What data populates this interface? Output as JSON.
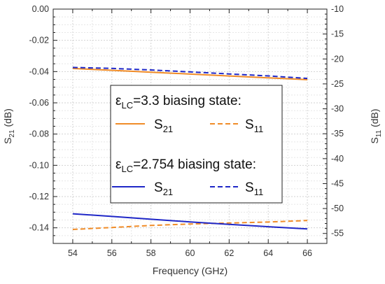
{
  "chart_data": {
    "type": "line",
    "xlabel": "Frequency (GHz)",
    "xlim": [
      53,
      67
    ],
    "x_ticks": [
      54,
      56,
      58,
      60,
      62,
      64,
      66
    ],
    "y_left": {
      "label_main": "S",
      "label_sub": "21",
      "label_unit": " (dB)",
      "lim": [
        -0.15,
        0.0
      ],
      "ticks": [
        "0.00",
        "-0.02",
        "-0.04",
        "-0.06",
        "-0.08",
        "-0.10",
        "-0.12",
        "-0.14"
      ]
    },
    "y_right": {
      "label_main": "S",
      "label_sub": "11",
      "label_unit": " (dB)",
      "lim": [
        -57,
        -10
      ],
      "ticks": [
        "-10",
        "-15",
        "-20",
        "-25",
        "-30",
        "-35",
        "-40",
        "-45",
        "-50",
        "-55"
      ]
    },
    "grid": true,
    "series": [
      {
        "state": "3.3",
        "param": "S21",
        "axis": "left",
        "color": "#f08c28",
        "dash": "solid",
        "x": [
          54,
          56,
          58,
          60,
          62,
          64,
          66
        ],
        "y": [
          -0.038,
          -0.0392,
          -0.0404,
          -0.0416,
          -0.0428,
          -0.044,
          -0.0452
        ]
      },
      {
        "state": "3.3",
        "param": "S11",
        "axis": "right",
        "color": "#f08c28",
        "dash": "dashed",
        "x": [
          54,
          56,
          58,
          60,
          62,
          64,
          66
        ],
        "y": [
          -54.2,
          -53.8,
          -53.4,
          -53.1,
          -52.9,
          -52.7,
          -52.4
        ]
      },
      {
        "state": "2.754",
        "param": "S21",
        "axis": "left",
        "color": "#1f27c7",
        "dash": "solid",
        "x": [
          54,
          56,
          58,
          60,
          62,
          64,
          66
        ],
        "y": [
          -0.131,
          -0.1327,
          -0.1345,
          -0.1362,
          -0.1378,
          -0.1393,
          -0.1407
        ]
      },
      {
        "state": "2.754",
        "param": "S11",
        "axis": "right",
        "color": "#1f27c7",
        "dash": "dashed",
        "x": [
          54,
          56,
          58,
          60,
          62,
          64,
          66
        ],
        "y": [
          -21.7,
          -21.9,
          -22.2,
          -22.6,
          -23.0,
          -23.4,
          -23.9
        ]
      }
    ],
    "legend": {
      "placement": "center",
      "groups": [
        {
          "eps": "ε",
          "eps_sub": "LC",
          "heading": "=3.3 biasing state:",
          "color": "#f08c28",
          "entries": [
            {
              "main": "S",
              "sub": "21",
              "dash": "solid"
            },
            {
              "main": "S",
              "sub": "11",
              "dash": "dashed"
            }
          ]
        },
        {
          "eps": "ε",
          "eps_sub": "LC",
          "heading": "=2.754 biasing state:",
          "color": "#1f27c7",
          "entries": [
            {
              "main": "S",
              "sub": "21",
              "dash": "solid"
            },
            {
              "main": "S",
              "sub": "11",
              "dash": "dashed"
            }
          ]
        }
      ]
    }
  }
}
